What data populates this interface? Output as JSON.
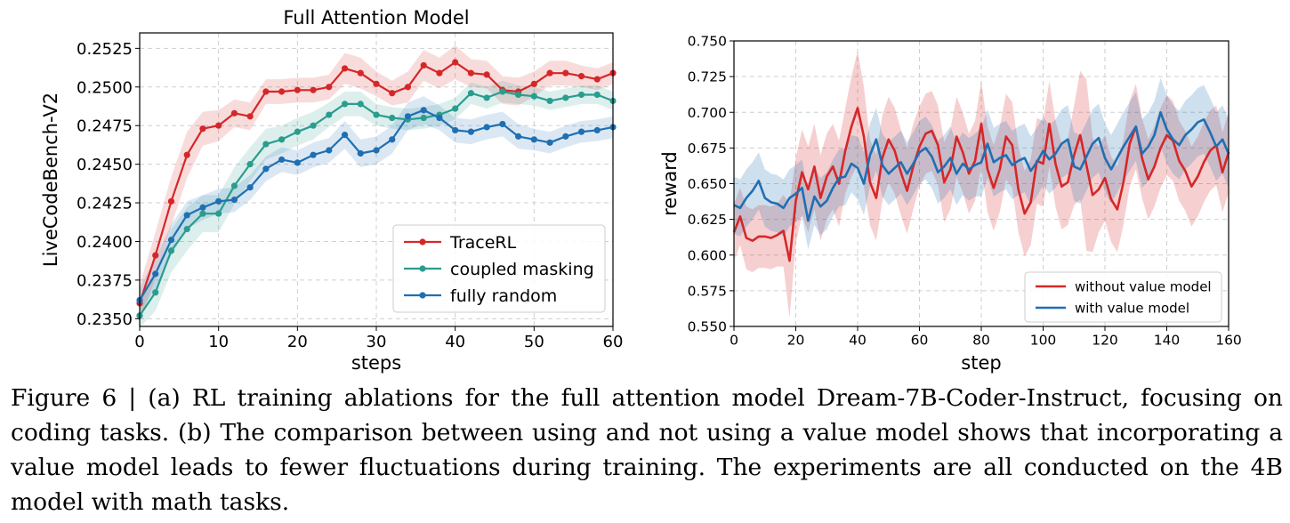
{
  "chart_data": [
    {
      "type": "line",
      "title": "Full Attention Model",
      "xlabel": "steps",
      "ylabel": "LiveCodeBench-V2",
      "xlim": [
        0,
        60
      ],
      "ylim": [
        0.2345,
        0.2535
      ],
      "xticks": [
        "0",
        "10",
        "20",
        "30",
        "40",
        "50",
        "60"
      ],
      "yticks": [
        "0.2350",
        "0.2375",
        "0.2400",
        "0.2425",
        "0.2450",
        "0.2475",
        "0.2500",
        "0.2525"
      ],
      "grid": true,
      "legend_position": "lower-right",
      "markers": true,
      "bands": "shaded confidence band around each series",
      "series": [
        {
          "name": "TraceRL",
          "color": "#d62728",
          "x": [
            0,
            2,
            4,
            6,
            8,
            10,
            12,
            14,
            16,
            18,
            20,
            22,
            24,
            26,
            28,
            30,
            32,
            34,
            36,
            38,
            40,
            42,
            44,
            46,
            48,
            50,
            52,
            54,
            56,
            58,
            60
          ],
          "y": [
            0.236,
            0.2391,
            0.2426,
            0.2456,
            0.2473,
            0.2475,
            0.2483,
            0.2481,
            0.2497,
            0.2497,
            0.2498,
            0.2498,
            0.25,
            0.2512,
            0.2509,
            0.2502,
            0.2496,
            0.25,
            0.2514,
            0.2509,
            0.2516,
            0.2509,
            0.2508,
            0.2498,
            0.2497,
            0.2502,
            0.2509,
            0.2509,
            0.2507,
            0.2505,
            0.2509
          ],
          "band": [
            0.0012,
            0.0015,
            0.0016,
            0.0015,
            0.0011,
            0.001,
            0.0009,
            0.0009,
            0.0008,
            0.0008,
            0.0008,
            0.0008,
            0.0008,
            0.001,
            0.001,
            0.0008,
            0.0008,
            0.001,
            0.001,
            0.001,
            0.0011,
            0.0009,
            0.0009,
            0.0009,
            0.0009,
            0.0008,
            0.0008,
            0.0008,
            0.0007,
            0.0007,
            0.0007
          ]
        },
        {
          "name": "coupled masking",
          "color": "#2a9d8f",
          "x": [
            0,
            2,
            4,
            6,
            8,
            10,
            12,
            14,
            16,
            18,
            20,
            22,
            24,
            26,
            28,
            30,
            32,
            34,
            36,
            38,
            40,
            42,
            44,
            46,
            48,
            50,
            52,
            54,
            56,
            58,
            60
          ],
          "y": [
            0.2352,
            0.2367,
            0.2394,
            0.2408,
            0.2418,
            0.2418,
            0.2436,
            0.245,
            0.2463,
            0.2466,
            0.2471,
            0.2475,
            0.2482,
            0.2489,
            0.2489,
            0.2482,
            0.248,
            0.2479,
            0.248,
            0.2482,
            0.2486,
            0.2496,
            0.2493,
            0.2497,
            0.2495,
            0.2494,
            0.2491,
            0.2493,
            0.2495,
            0.2495,
            0.2491
          ],
          "band": [
            0.0008,
            0.0012,
            0.0014,
            0.0014,
            0.0012,
            0.0012,
            0.0012,
            0.0011,
            0.001,
            0.0009,
            0.0009,
            0.0009,
            0.0008,
            0.0008,
            0.0008,
            0.0007,
            0.0007,
            0.0007,
            0.0007,
            0.0007,
            0.0007,
            0.0007,
            0.0007,
            0.0007,
            0.0006,
            0.0006,
            0.0006,
            0.0006,
            0.0006,
            0.0006,
            0.0006
          ]
        },
        {
          "name": "fully random",
          "color": "#1f6fb2",
          "x": [
            0,
            2,
            4,
            6,
            8,
            10,
            12,
            14,
            16,
            18,
            20,
            22,
            24,
            26,
            28,
            30,
            32,
            34,
            36,
            38,
            40,
            42,
            44,
            46,
            48,
            50,
            52,
            54,
            56,
            58,
            60
          ],
          "y": [
            0.2362,
            0.2379,
            0.2401,
            0.2417,
            0.2422,
            0.2426,
            0.2427,
            0.2435,
            0.2447,
            0.2453,
            0.2451,
            0.2456,
            0.2459,
            0.2469,
            0.2457,
            0.2459,
            0.2466,
            0.2481,
            0.2485,
            0.248,
            0.2472,
            0.2471,
            0.2474,
            0.2476,
            0.2468,
            0.2466,
            0.2464,
            0.2468,
            0.2471,
            0.2472,
            0.2474
          ],
          "band": [
            0.0008,
            0.001,
            0.001,
            0.0009,
            0.0008,
            0.0008,
            0.0008,
            0.0008,
            0.0008,
            0.0008,
            0.0008,
            0.0008,
            0.0008,
            0.0009,
            0.0009,
            0.0009,
            0.0009,
            0.0009,
            0.0009,
            0.0008,
            0.0008,
            0.0008,
            0.0008,
            0.0008,
            0.0008,
            0.0007,
            0.0007,
            0.0007,
            0.0007,
            0.0007,
            0.0007
          ]
        }
      ]
    },
    {
      "type": "line",
      "title": "",
      "xlabel": "step",
      "ylabel": "reward",
      "xlim": [
        0,
        160
      ],
      "ylim": [
        0.55,
        0.75
      ],
      "xticks": [
        "0",
        "20",
        "40",
        "60",
        "80",
        "100",
        "120",
        "140",
        "160"
      ],
      "yticks": [
        "0.550",
        "0.575",
        "0.600",
        "0.625",
        "0.650",
        "0.675",
        "0.700",
        "0.725",
        "0.750"
      ],
      "grid": true,
      "legend_position": "lower-right",
      "markers": false,
      "bands": "shaded min-max band around each series",
      "series": [
        {
          "name": "without value model",
          "color": "#d62728",
          "x": [
            0,
            2,
            4,
            6,
            8,
            10,
            12,
            14,
            16,
            18,
            20,
            22,
            24,
            26,
            28,
            30,
            32,
            34,
            36,
            38,
            40,
            42,
            44,
            46,
            48,
            50,
            52,
            54,
            56,
            58,
            60,
            62,
            64,
            66,
            68,
            70,
            72,
            74,
            76,
            78,
            80,
            82,
            84,
            86,
            88,
            90,
            92,
            94,
            96,
            98,
            100,
            102,
            104,
            106,
            108,
            110,
            112,
            114,
            116,
            118,
            120,
            122,
            124,
            126,
            128,
            130,
            132,
            134,
            136,
            138,
            140,
            142,
            144,
            146,
            148,
            150,
            152,
            154,
            156,
            158,
            160
          ],
          "y": [
            0.616,
            0.627,
            0.612,
            0.61,
            0.613,
            0.613,
            0.612,
            0.614,
            0.617,
            0.596,
            0.638,
            0.658,
            0.646,
            0.662,
            0.64,
            0.655,
            0.662,
            0.65,
            0.673,
            0.69,
            0.703,
            0.683,
            0.651,
            0.64,
            0.668,
            0.681,
            0.673,
            0.658,
            0.645,
            0.662,
            0.676,
            0.685,
            0.687,
            0.677,
            0.651,
            0.66,
            0.683,
            0.672,
            0.657,
            0.666,
            0.692,
            0.66,
            0.647,
            0.66,
            0.683,
            0.677,
            0.646,
            0.629,
            0.637,
            0.666,
            0.664,
            0.692,
            0.664,
            0.648,
            0.651,
            0.67,
            0.684,
            0.663,
            0.642,
            0.646,
            0.654,
            0.639,
            0.632,
            0.651,
            0.678,
            0.69,
            0.668,
            0.653,
            0.662,
            0.675,
            0.684,
            0.68,
            0.666,
            0.659,
            0.648,
            0.655,
            0.665,
            0.673,
            0.677,
            0.658,
            0.672
          ],
          "band": [
            0.02,
            0.02,
            0.022,
            0.022,
            0.022,
            0.022,
            0.022,
            0.022,
            0.025,
            0.04,
            0.03,
            0.03,
            0.03,
            0.03,
            0.03,
            0.03,
            0.03,
            0.03,
            0.03,
            0.035,
            0.04,
            0.035,
            0.03,
            0.03,
            0.03,
            0.03,
            0.03,
            0.03,
            0.03,
            0.03,
            0.028,
            0.028,
            0.028,
            0.028,
            0.028,
            0.028,
            0.028,
            0.028,
            0.028,
            0.028,
            0.03,
            0.03,
            0.03,
            0.03,
            0.03,
            0.03,
            0.03,
            0.03,
            0.03,
            0.03,
            0.03,
            0.03,
            0.03,
            0.03,
            0.03,
            0.035,
            0.045,
            0.06,
            0.04,
            0.03,
            0.03,
            0.03,
            0.03,
            0.03,
            0.03,
            0.03,
            0.028,
            0.028,
            0.028,
            0.028,
            0.028,
            0.028,
            0.028,
            0.028,
            0.028,
            0.028,
            0.028,
            0.028,
            0.028,
            0.028,
            0.028
          ]
        },
        {
          "name": "with value model",
          "color": "#1f6fb2",
          "x": [
            0,
            2,
            4,
            6,
            8,
            10,
            12,
            14,
            16,
            18,
            20,
            22,
            24,
            26,
            28,
            30,
            32,
            34,
            36,
            38,
            40,
            42,
            44,
            46,
            48,
            50,
            52,
            54,
            56,
            58,
            60,
            62,
            64,
            66,
            68,
            70,
            72,
            74,
            76,
            78,
            80,
            82,
            84,
            86,
            88,
            90,
            92,
            94,
            96,
            98,
            100,
            102,
            104,
            106,
            108,
            110,
            112,
            114,
            116,
            118,
            120,
            122,
            124,
            126,
            128,
            130,
            132,
            134,
            136,
            138,
            140,
            142,
            144,
            146,
            148,
            150,
            152,
            154,
            156,
            158,
            160
          ],
          "y": [
            0.635,
            0.633,
            0.64,
            0.645,
            0.652,
            0.64,
            0.637,
            0.636,
            0.633,
            0.64,
            0.643,
            0.647,
            0.624,
            0.641,
            0.634,
            0.638,
            0.647,
            0.654,
            0.655,
            0.664,
            0.661,
            0.65,
            0.67,
            0.681,
            0.663,
            0.657,
            0.661,
            0.665,
            0.657,
            0.664,
            0.672,
            0.675,
            0.669,
            0.658,
            0.662,
            0.668,
            0.657,
            0.664,
            0.66,
            0.663,
            0.665,
            0.678,
            0.665,
            0.668,
            0.67,
            0.663,
            0.666,
            0.668,
            0.659,
            0.665,
            0.673,
            0.667,
            0.671,
            0.678,
            0.681,
            0.662,
            0.66,
            0.669,
            0.678,
            0.682,
            0.668,
            0.66,
            0.668,
            0.676,
            0.683,
            0.69,
            0.671,
            0.676,
            0.684,
            0.7,
            0.688,
            0.681,
            0.677,
            0.684,
            0.688,
            0.693,
            0.695,
            0.686,
            0.676,
            0.681,
            0.671
          ],
          "band": [
            0.02,
            0.02,
            0.02,
            0.02,
            0.02,
            0.02,
            0.02,
            0.02,
            0.02,
            0.02,
            0.02,
            0.02,
            0.02,
            0.02,
            0.02,
            0.02,
            0.02,
            0.02,
            0.02,
            0.02,
            0.022,
            0.022,
            0.022,
            0.022,
            0.022,
            0.022,
            0.022,
            0.022,
            0.022,
            0.022,
            0.022,
            0.022,
            0.022,
            0.022,
            0.022,
            0.022,
            0.022,
            0.022,
            0.022,
            0.022,
            0.024,
            0.024,
            0.024,
            0.024,
            0.024,
            0.024,
            0.024,
            0.024,
            0.024,
            0.024,
            0.024,
            0.024,
            0.024,
            0.024,
            0.024,
            0.024,
            0.024,
            0.024,
            0.024,
            0.024,
            0.024,
            0.024,
            0.024,
            0.024,
            0.024,
            0.024,
            0.024,
            0.024,
            0.024,
            0.024,
            0.024,
            0.024,
            0.024,
            0.024,
            0.024,
            0.024,
            0.024,
            0.024,
            0.024,
            0.024,
            0.024
          ]
        }
      ]
    }
  ],
  "caption": {
    "line1": "Figure 6 | (a) RL training ablations for the full attention model Dream-7B-Coder-Instruct, focusing on",
    "line2": "coding tasks. (b) The comparison between using and not using a value model shows that incorporating",
    "line3": "a value model leads to fewer fluctuations during training. The experiments are all conducted on the",
    "line4": "4B model with math tasks."
  }
}
